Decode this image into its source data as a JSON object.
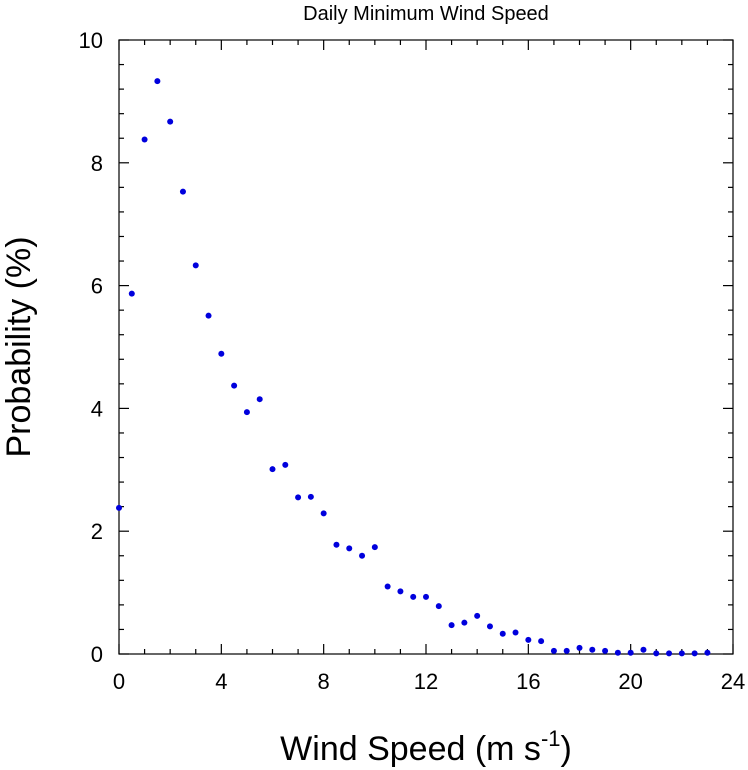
{
  "chart_data": {
    "type": "scatter",
    "title": "Daily Minimum Wind Speed",
    "xlabel": "Wind Speed (m s",
    "xlabel_sup": "-1",
    "xlabel_close": ")",
    "ylabel": "Probability (%)",
    "xlim": [
      0,
      24
    ],
    "ylim": [
      0,
      10
    ],
    "xticks": [
      "0",
      "4",
      "8",
      "12",
      "16",
      "20",
      "24"
    ],
    "yticks": [
      "0",
      "2",
      "4",
      "6",
      "8",
      "10"
    ],
    "grid": false,
    "marker_color": "#0000dd",
    "x": [
      0,
      0.5,
      1,
      1.5,
      2,
      2.5,
      3,
      3.5,
      4,
      4.5,
      5,
      5.5,
      6,
      6.5,
      7,
      7.5,
      8,
      8.5,
      9,
      9.5,
      10,
      10.5,
      11,
      11.5,
      12,
      12.5,
      13,
      13.5,
      14,
      14.5,
      15,
      15.5,
      16,
      16.5,
      17,
      17.5,
      18,
      18.5,
      19,
      19.5,
      20,
      20.5,
      21,
      21.5,
      22,
      22.5,
      23
    ],
    "y": [
      2.38,
      5.87,
      8.38,
      9.33,
      8.67,
      7.53,
      6.33,
      5.51,
      4.89,
      4.37,
      3.94,
      4.15,
      3.01,
      3.08,
      2.55,
      2.56,
      2.29,
      1.78,
      1.72,
      1.6,
      1.74,
      1.1,
      1.02,
      0.93,
      0.93,
      0.78,
      0.47,
      0.51,
      0.62,
      0.45,
      0.33,
      0.35,
      0.23,
      0.21,
      0.05,
      0.05,
      0.1,
      0.07,
      0.05,
      0.02,
      0.02,
      0.07,
      0.01,
      0.01,
      0.01,
      0.01,
      0.02
    ]
  }
}
